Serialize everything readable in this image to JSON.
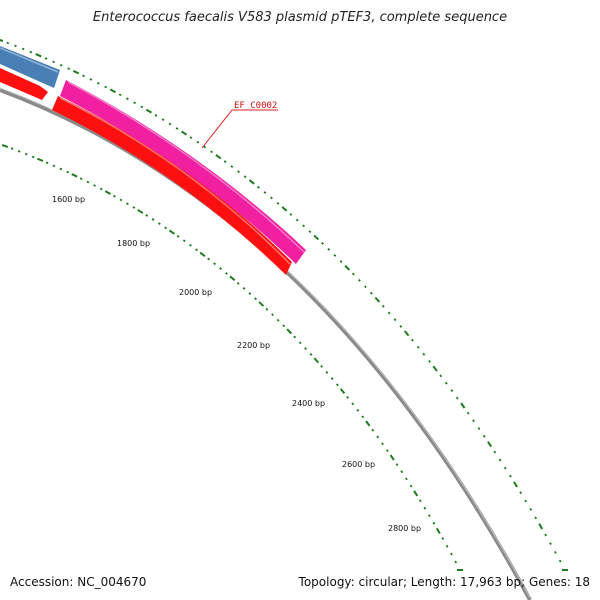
{
  "title": "Enterococcus faecalis V583 plasmid pTEF3, complete sequence",
  "footer": {
    "accession": "Accession: NC_004670",
    "summary": "Topology: circular; Length: 17,963 bp; Genes: 18"
  },
  "colors": {
    "tick": "#1e7a1e",
    "backbone": "#8a8a8a",
    "forward_blue": "#4a7fb5",
    "forward_pink": "#f020a0",
    "reverse_red": "#ff1010",
    "label_line": "#e02020"
  },
  "position_labels": [
    "1600 bp",
    "1800 bp",
    "2000 bp",
    "2200 bp",
    "2400 bp",
    "2600 bp",
    "2800 bp"
  ],
  "gene_label": {
    "text": "EF_C0002"
  }
}
